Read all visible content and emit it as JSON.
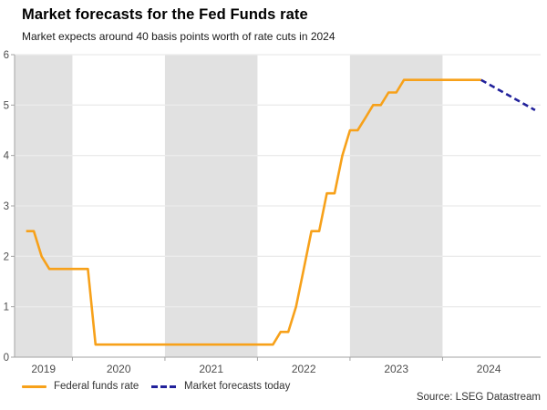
{
  "header": {
    "title": "Market forecasts for the Fed Funds rate",
    "subtitle": "Market expects around 40 basis points worth of rate cuts in 2024"
  },
  "source": "Source: LSEG Datastream",
  "legend": [
    {
      "label": "Federal funds rate",
      "color": "#F7A11A",
      "style": "solid"
    },
    {
      "label": "Market forecasts today",
      "color": "#21219B",
      "style": "dashed"
    }
  ],
  "colors": {
    "band": "#E1E1E1",
    "gridline": "#EBEBEB",
    "spine": "#A3A3A3",
    "tick_label": "#4D4D4D",
    "solid_line": "#F7A11A",
    "dashed_line": "#21219B"
  },
  "chart_data": {
    "type": "line",
    "title": "Market forecasts for the Fed Funds rate",
    "subtitle": "Market expects around 40 basis points worth of rate cuts in 2024",
    "xlabel": "",
    "ylabel": "",
    "ylim": [
      0,
      6
    ],
    "yticks": [
      0,
      1,
      2,
      3,
      4,
      5,
      6
    ],
    "xlim": [
      2019.375,
      2025.06
    ],
    "xtick_years": [
      2020,
      2021,
      2022,
      2023,
      2024
    ],
    "xtick_labels": [
      "2019",
      "2020",
      "2021",
      "2022",
      "2023",
      "2024"
    ],
    "grid": true,
    "shaded_year_bands": [
      [
        2019.375,
        2020
      ],
      [
        2021,
        2022
      ],
      [
        2023,
        2024
      ]
    ],
    "legend_position": "bottom-left",
    "series": [
      {
        "name": "Federal funds rate",
        "style": "solid",
        "color": "#F7A11A",
        "points": [
          [
            2019.5,
            2.5
          ],
          [
            2019.583,
            2.5
          ],
          [
            2019.667,
            2.0
          ],
          [
            2019.75,
            1.75
          ],
          [
            2020.167,
            1.75
          ],
          [
            2020.25,
            0.25
          ],
          [
            2022.167,
            0.25
          ],
          [
            2022.25,
            0.5
          ],
          [
            2022.333,
            0.5
          ],
          [
            2022.417,
            1.0
          ],
          [
            2022.5,
            1.75
          ],
          [
            2022.583,
            2.5
          ],
          [
            2022.667,
            2.5
          ],
          [
            2022.75,
            3.25
          ],
          [
            2022.833,
            3.25
          ],
          [
            2022.917,
            4.0
          ],
          [
            2023.0,
            4.5
          ],
          [
            2023.083,
            4.5
          ],
          [
            2023.167,
            4.75
          ],
          [
            2023.25,
            5.0
          ],
          [
            2023.333,
            5.0
          ],
          [
            2023.417,
            5.25
          ],
          [
            2023.5,
            5.25
          ],
          [
            2023.583,
            5.5
          ],
          [
            2024.417,
            5.5
          ]
        ]
      },
      {
        "name": "Market forecasts today",
        "style": "dashed",
        "color": "#21219B",
        "points": [
          [
            2024.417,
            5.5
          ],
          [
            2025.0,
            4.9
          ]
        ]
      }
    ]
  }
}
